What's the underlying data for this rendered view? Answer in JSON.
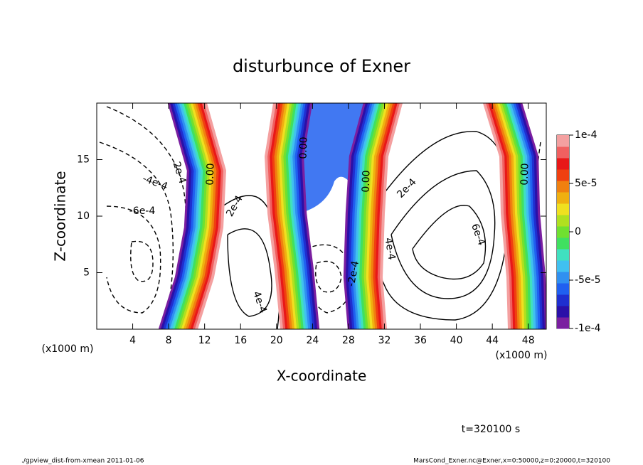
{
  "chart_data": {
    "type": "contour",
    "title": "disturbunce of Exner",
    "x_label": "X-coordinate",
    "y_label": "Z-coordinate",
    "x_unit_label": "(x1000 m)",
    "y_unit_label": "(x1000 m)",
    "xlim": [
      0,
      50
    ],
    "xticks": [
      4,
      8,
      12,
      16,
      20,
      24,
      28,
      32,
      36,
      40,
      44,
      48
    ],
    "ylim": [
      0,
      20
    ],
    "yticks": [
      5,
      10,
      15
    ],
    "colorbar": {
      "lim": [
        -0.0001,
        0.0001
      ],
      "ticks": [
        {
          "value": 0.0001,
          "label": "1e-4"
        },
        {
          "value": 5e-05,
          "label": "5e-5"
        },
        0,
        {
          "value": -5e-05,
          "label": "-5e-5"
        },
        {
          "value": -0.0001,
          "label": "-1e-4"
        }
      ],
      "colors": [
        "#7a1fa0",
        "#2a10a8",
        "#1f2fd0",
        "#2060f0",
        "#3090f0",
        "#40c0f0",
        "#40e0c0",
        "#40e060",
        "#70e030",
        "#b0e020",
        "#f0e020",
        "#f0b010",
        "#f08010",
        "#f04010",
        "#e81818",
        "#f06060",
        "#f4a0a0"
      ]
    },
    "contour_labels": [
      "2e-4",
      "-4e-4",
      "-6e-4",
      "0.00",
      "2e-4",
      "0.00",
      "0.00",
      "2e-4",
      "4e-4",
      "6e-4",
      "0.00",
      "-2e-4",
      "4e-4"
    ],
    "time_label": "t=320100 s",
    "footer_left": "./gpview_dist-from-xmean   2011-01-06",
    "footer_right": "MarsCond_Exner.nc@Exner,x=0:50000,z=0:20000,t=320100"
  }
}
